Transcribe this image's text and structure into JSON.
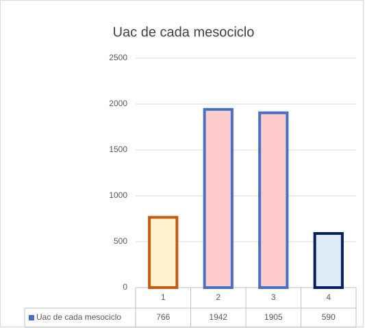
{
  "chart_data": {
    "type": "bar",
    "title": "Uac de cada mesociclo",
    "categories": [
      "1",
      "2",
      "3",
      "4"
    ],
    "series": [
      {
        "name": "Uac de cada mesociclo",
        "color": "#4472c4",
        "values": [
          766,
          1942,
          1905,
          590
        ],
        "bar_fills": [
          "#fff2cc",
          "#ffcccc",
          "#ffcccc",
          "#deebf7"
        ],
        "bar_edges": [
          "#c55a11",
          "#4472c4",
          "#4472c4",
          "#002060"
        ]
      }
    ],
    "ylim": [
      0,
      2500
    ],
    "yticks": [
      0,
      500,
      1000,
      1500,
      2000,
      2500
    ],
    "grid": true,
    "data_table": true
  }
}
